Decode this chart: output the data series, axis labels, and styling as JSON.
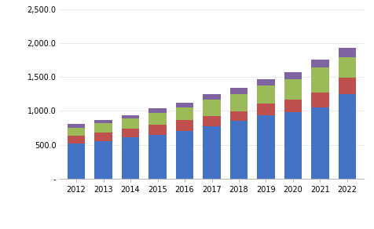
{
  "years": [
    2012,
    2013,
    2014,
    2015,
    2016,
    2017,
    2018,
    2019,
    2020,
    2021,
    2022
  ],
  "EEG": [
    520,
    555,
    610,
    650,
    700,
    775,
    850,
    940,
    980,
    1050,
    1250
  ],
  "Evoked_Potential": [
    110,
    120,
    125,
    150,
    170,
    150,
    140,
    165,
    190,
    215,
    245
  ],
  "EMG": [
    125,
    140,
    150,
    170,
    175,
    240,
    255,
    270,
    295,
    370,
    300
  ],
  "ECoG": [
    50,
    50,
    55,
    65,
    80,
    85,
    90,
    95,
    110,
    125,
    135
  ],
  "colors": {
    "EEG": "#4472C4",
    "Evoked_Potential": "#C0504D",
    "EMG": "#9BBB59",
    "ECoG": "#8064A2"
  },
  "ylim": [
    0,
    2500
  ],
  "yticks": [
    0,
    500,
    1000,
    1500,
    2000,
    2500
  ],
  "ytick_labels": [
    "-",
    "500.0",
    "1,000.0",
    "1,500.0",
    "2,000.0",
    "2,500.0"
  ],
  "bg_color": "#FFFFFF"
}
